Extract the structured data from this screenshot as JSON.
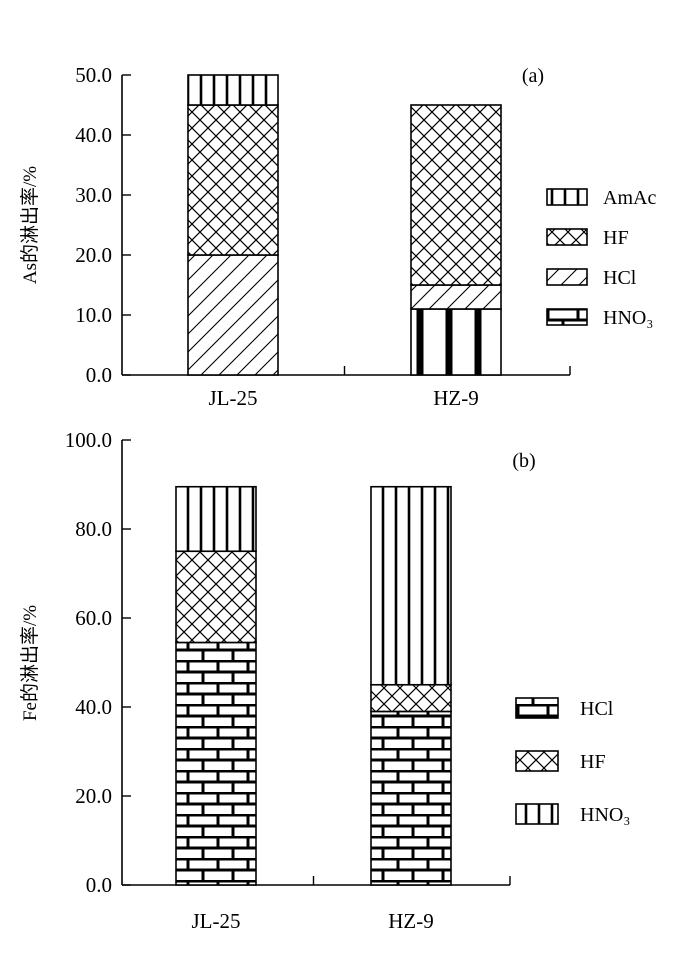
{
  "chart_data": [
    {
      "panel": "(a)",
      "type": "bar",
      "stacked": true,
      "ylabel": "As的淋出率/%",
      "xlabel": "",
      "categories": [
        "JL-25",
        "HZ-9"
      ],
      "ylim": [
        0,
        50
      ],
      "yticks": [
        "0.0",
        "10.0",
        "20.0",
        "30.0",
        "40.0",
        "50.0"
      ],
      "series": [
        {
          "name": "HNO₃",
          "pattern": "brick",
          "values": [
            0,
            11
          ]
        },
        {
          "name": "HCl",
          "pattern": "diagonal",
          "values": [
            20,
            4
          ]
        },
        {
          "name": "HF",
          "pattern": "crosshatch",
          "values": [
            25,
            30
          ]
        },
        {
          "name": "AmAc",
          "pattern": "vertical",
          "values": [
            5,
            0
          ]
        }
      ],
      "legend_order": [
        "AmAc",
        "HF",
        "HCl",
        "HNO₃"
      ],
      "legend_position": "right"
    },
    {
      "panel": "(b)",
      "type": "bar",
      "stacked": true,
      "ylabel": "Fe的淋出率/%",
      "xlabel": "",
      "categories": [
        "JL-25",
        "HZ-9"
      ],
      "ylim": [
        0,
        100
      ],
      "yticks": [
        "0.0",
        "20.0",
        "40.0",
        "60.0",
        "80.0",
        "100.0"
      ],
      "series": [
        {
          "name": "HCl",
          "pattern": "brick",
          "values": [
            54.5,
            39
          ]
        },
        {
          "name": "HF",
          "pattern": "crosshatch",
          "values": [
            20.5,
            6
          ]
        },
        {
          "name": "HNO₃",
          "pattern": "vertical",
          "values": [
            14.5,
            44.5
          ]
        }
      ],
      "legend_order": [
        "HCl",
        "HF",
        "HNO₃"
      ],
      "legend_position": "right"
    }
  ]
}
